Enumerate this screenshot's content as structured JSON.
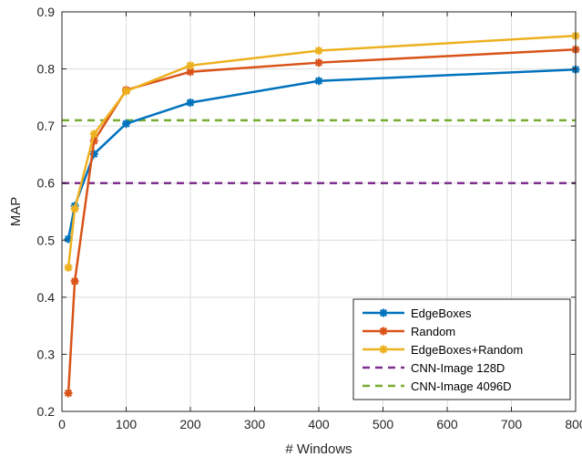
{
  "chart_data": {
    "type": "line",
    "xlabel": "# Windows",
    "ylabel": "MAP",
    "xlim": [
      0,
      800
    ],
    "ylim": [
      0.2,
      0.9
    ],
    "xticks": [
      0,
      100,
      200,
      300,
      400,
      500,
      600,
      700,
      800
    ],
    "yticks": [
      0.2,
      0.3,
      0.4,
      0.5,
      0.6,
      0.7,
      0.8,
      0.9
    ],
    "grid": true,
    "legend_position": "bottom-right",
    "series": [
      {
        "name": "EdgeBoxes",
        "color": "#0072bd",
        "style": "solid-marker",
        "x": [
          10,
          20,
          50,
          100,
          200,
          400,
          800
        ],
        "y": [
          0.502,
          0.56,
          0.651,
          0.704,
          0.741,
          0.779,
          0.799
        ]
      },
      {
        "name": "Random",
        "color": "#d95319",
        "style": "solid-marker",
        "x": [
          10,
          20,
          50,
          100,
          200,
          400,
          800
        ],
        "y": [
          0.232,
          0.428,
          0.674,
          0.763,
          0.795,
          0.811,
          0.834
        ]
      },
      {
        "name": "EdgeBoxes+Random",
        "color": "#edb120",
        "style": "solid-marker",
        "x": [
          10,
          20,
          50,
          100,
          200,
          400,
          800
        ],
        "y": [
          0.452,
          0.555,
          0.686,
          0.761,
          0.806,
          0.832,
          0.858
        ]
      },
      {
        "name": "CNN-Image 128D",
        "color": "#7e2f8e",
        "style": "dashed",
        "x": [
          0,
          800
        ],
        "y": [
          0.6,
          0.6
        ]
      },
      {
        "name": "CNN-Image 4096D",
        "color": "#77ac30",
        "style": "dashed",
        "x": [
          0,
          800
        ],
        "y": [
          0.71,
          0.71
        ]
      }
    ]
  }
}
